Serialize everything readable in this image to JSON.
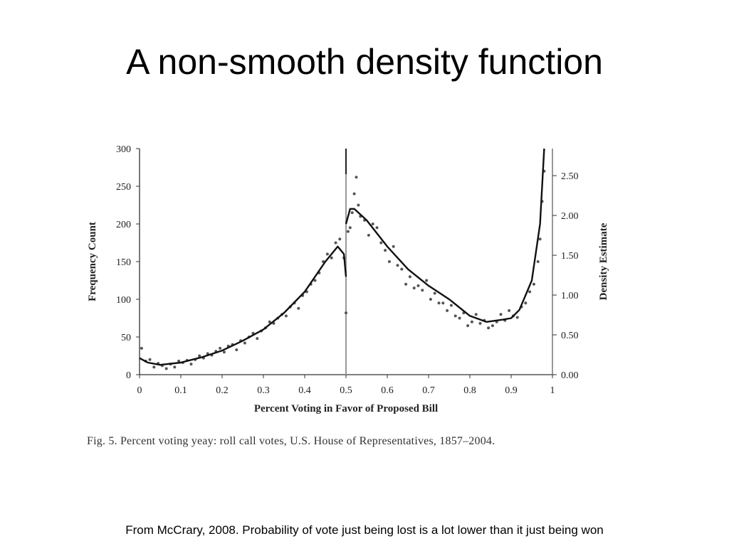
{
  "slide": {
    "title": "A non-smooth density function",
    "caption": "Fig. 5.  Percent voting yeay: roll call votes, U.S. House of Representatives, 1857–2004.",
    "footnote": "From McCrary, 2008. Probability of vote just being lost is a lot lower than it just being won"
  },
  "colors": {
    "points": "#555555",
    "fit": "#111111",
    "cutoff": "#999999",
    "axis": "#333333"
  },
  "chart_data": {
    "type": "scatter",
    "xlabel": "Percent Voting in Favor of Proposed Bill",
    "ylabel": "Frequency Count",
    "ylabel_right": "Density Estimate",
    "xlim": [
      0,
      1
    ],
    "ylim": [
      0,
      300
    ],
    "ylim_right": [
      0,
      2.84
    ],
    "xticks": [
      "0",
      "0.1",
      "0.2",
      "0.3",
      "0.4",
      "0.5",
      "0.6",
      "0.7",
      "0.8",
      "0.9",
      "1"
    ],
    "yticks": [
      "0",
      "50",
      "100",
      "150",
      "200",
      "250",
      "300"
    ],
    "yticks_right": [
      "0.00",
      "0.50",
      "1.00",
      "1.50",
      "2.00",
      "2.50"
    ],
    "cutoff": 0.5,
    "grid": false,
    "legend": "none",
    "fit_left": {
      "x": [
        0.0,
        0.02,
        0.05,
        0.1,
        0.15,
        0.2,
        0.25,
        0.3,
        0.35,
        0.4,
        0.45,
        0.48,
        0.495,
        0.5
      ],
      "y": [
        22,
        16,
        13,
        16,
        23,
        32,
        45,
        60,
        82,
        110,
        150,
        170,
        160,
        130
      ]
    },
    "fit_right": {
      "x": [
        0.5,
        0.51,
        0.52,
        0.55,
        0.6,
        0.65,
        0.7,
        0.75,
        0.8,
        0.84,
        0.88,
        0.9,
        0.92,
        0.95,
        0.97,
        0.98
      ],
      "y": [
        200,
        220,
        220,
        205,
        170,
        140,
        118,
        100,
        78,
        70,
        73,
        75,
        86,
        125,
        200,
        300
      ]
    },
    "points": {
      "x": [
        0.005,
        0.015,
        0.025,
        0.035,
        0.045,
        0.055,
        0.065,
        0.075,
        0.085,
        0.095,
        0.105,
        0.115,
        0.125,
        0.135,
        0.145,
        0.155,
        0.165,
        0.175,
        0.185,
        0.195,
        0.205,
        0.215,
        0.225,
        0.235,
        0.245,
        0.255,
        0.265,
        0.275,
        0.285,
        0.295,
        0.305,
        0.315,
        0.325,
        0.335,
        0.345,
        0.355,
        0.365,
        0.375,
        0.385,
        0.395,
        0.405,
        0.415,
        0.425,
        0.435,
        0.445,
        0.455,
        0.465,
        0.475,
        0.485,
        0.495,
        0.5,
        0.505,
        0.51,
        0.515,
        0.52,
        0.525,
        0.53,
        0.535,
        0.545,
        0.555,
        0.565,
        0.575,
        0.585,
        0.595,
        0.605,
        0.615,
        0.625,
        0.635,
        0.645,
        0.655,
        0.665,
        0.675,
        0.685,
        0.695,
        0.705,
        0.715,
        0.725,
        0.735,
        0.745,
        0.755,
        0.765,
        0.775,
        0.785,
        0.795,
        0.805,
        0.815,
        0.825,
        0.835,
        0.845,
        0.855,
        0.865,
        0.875,
        0.885,
        0.895,
        0.905,
        0.915,
        0.925,
        0.935,
        0.945,
        0.955,
        0.965,
        0.97,
        0.975,
        0.98
      ],
      "y": [
        35,
        18,
        20,
        10,
        15,
        12,
        8,
        14,
        10,
        18,
        16,
        19,
        14,
        20,
        25,
        22,
        28,
        26,
        31,
        35,
        30,
        38,
        40,
        33,
        45,
        42,
        50,
        55,
        48,
        58,
        62,
        70,
        68,
        75,
        80,
        78,
        90,
        95,
        88,
        105,
        110,
        120,
        125,
        135,
        150,
        160,
        155,
        175,
        180,
        155,
        82,
        190,
        195,
        215,
        240,
        262,
        225,
        210,
        205,
        185,
        200,
        195,
        175,
        165,
        150,
        170,
        145,
        140,
        120,
        130,
        115,
        118,
        112,
        125,
        100,
        108,
        95,
        95,
        85,
        92,
        78,
        75,
        82,
        65,
        70,
        80,
        68,
        72,
        62,
        65,
        70,
        80,
        72,
        85,
        78,
        76,
        90,
        95,
        110,
        120,
        150,
        180,
        230,
        270
      ]
    }
  }
}
